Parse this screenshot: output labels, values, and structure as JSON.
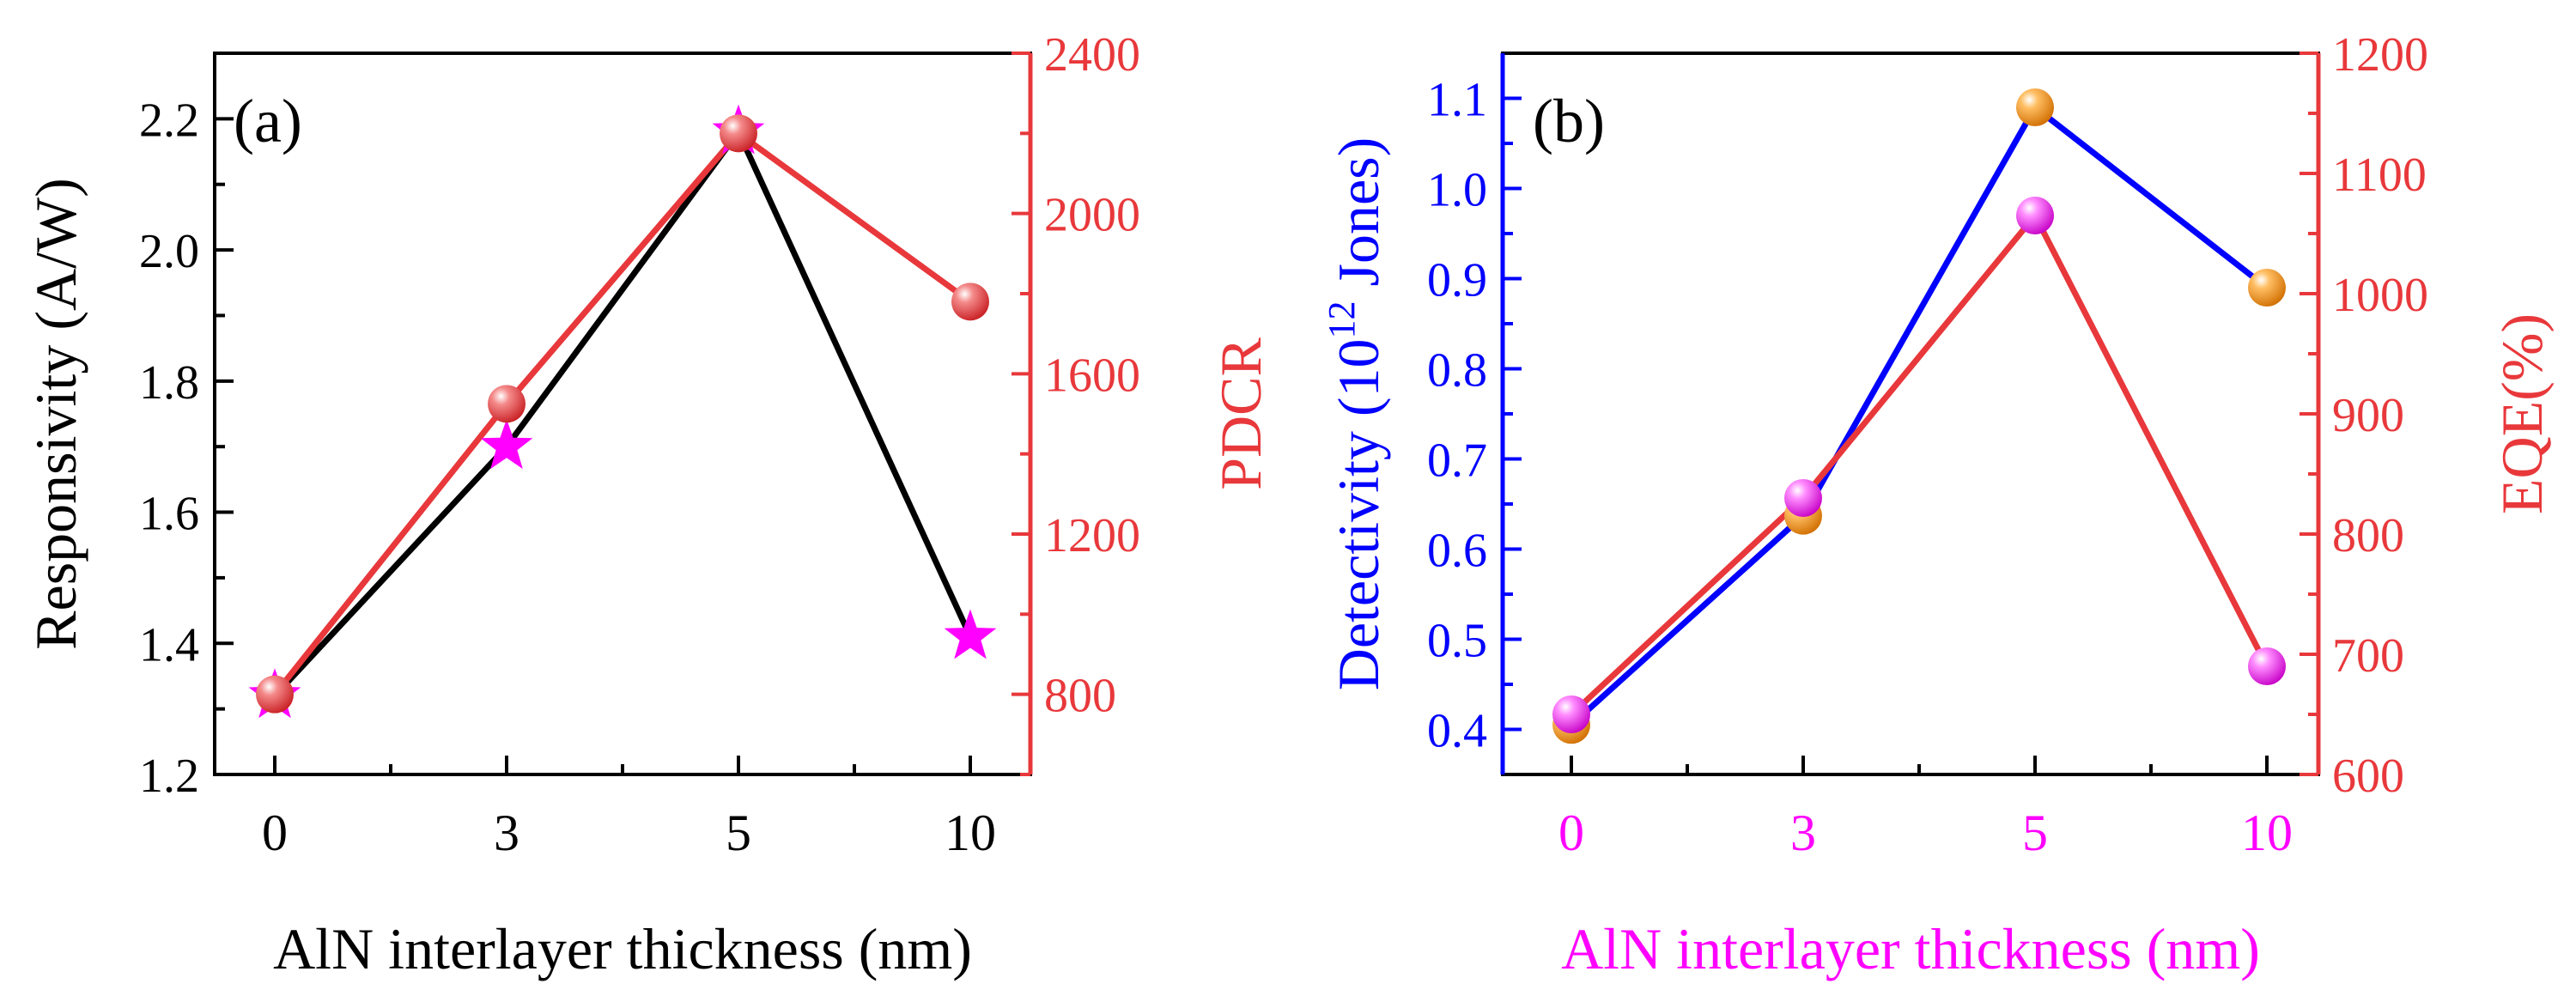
{
  "colors": {
    "black": "#000000",
    "red": "#e8383b",
    "blue": "#0000ff",
    "magenta": "#ff00ff",
    "orange": "#f28c0f"
  },
  "chart_data": [
    {
      "type": "line",
      "panel_label": "(a)",
      "categories": [
        "0",
        "3",
        "5",
        "10"
      ],
      "xlabel": "AlN interlayer thickness (nm)",
      "ylabel_left": "Responsivity (A/W)",
      "ylabel_right": "PDCR",
      "ylim_left": [
        1.2,
        2.3
      ],
      "yticks_left": [
        "1.2",
        "1.4",
        "1.6",
        "1.8",
        "2.0",
        "2.2"
      ],
      "ylim_right": [
        600,
        2400
      ],
      "yticks_right": [
        "800",
        "1200",
        "1600",
        "2000",
        "2400"
      ],
      "series": [
        {
          "name": "Responsivity",
          "axis": "left",
          "values": [
            1.32,
            1.7,
            2.18,
            1.41
          ],
          "marker": "star",
          "line_color": "#000000",
          "marker_color": "#ff00ff"
        },
        {
          "name": "PDCR",
          "axis": "right",
          "values": [
            800,
            1525,
            2200,
            1780
          ],
          "marker": "sphere",
          "line_color": "#e8383b",
          "marker_color": "#e8383b"
        }
      ]
    },
    {
      "type": "line",
      "panel_label": "(b)",
      "categories": [
        "0",
        "3",
        "5",
        "10"
      ],
      "xlabel": "AlN interlayer thickness (nm)",
      "ylabel_left": "Detectivity (10",
      "ylabel_left_sup": "12",
      "ylabel_left_end": " Jones)",
      "ylabel_right": "EQE(%)",
      "ylim_left": [
        0.35,
        1.15
      ],
      "yticks_left": [
        "0.4",
        "0.5",
        "0.6",
        "0.7",
        "0.8",
        "0.9",
        "1.0",
        "1.1"
      ],
      "ylim_right": [
        600,
        1200
      ],
      "yticks_right": [
        "600",
        "700",
        "800",
        "900",
        "1000",
        "1100",
        "1200"
      ],
      "series": [
        {
          "name": "Detectivity",
          "axis": "left",
          "values": [
            0.405,
            0.637,
            1.09,
            0.89
          ],
          "marker": "sphere",
          "line_color": "#0000ff",
          "marker_color": "#f28c0f"
        },
        {
          "name": "EQE",
          "axis": "right",
          "values": [
            650,
            830,
            1065,
            690
          ],
          "marker": "sphere",
          "line_color": "#e8383b",
          "marker_color": "#ff00ff"
        }
      ]
    }
  ]
}
